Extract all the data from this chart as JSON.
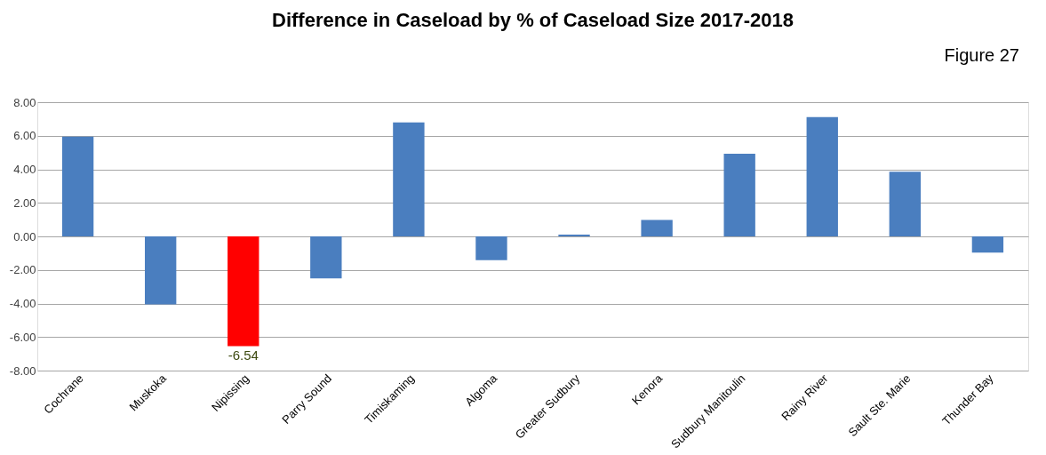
{
  "chart_data": {
    "type": "bar",
    "title": "Difference in Caseload by % of Caseload Size 2017-2018",
    "categories": [
      "Cochrane",
      "Muskoka",
      "Nipissing",
      "Parry Sound",
      "Timiskaming",
      "Algoma",
      "Greater Sudbury",
      "Kenora",
      "Sudbury Manitoulin",
      "Rainy River",
      "Sault Ste. Marie",
      "Thunder Bay"
    ],
    "values": [
      5.95,
      -4.05,
      -6.54,
      -2.5,
      6.8,
      -1.42,
      0.1,
      0.98,
      4.93,
      7.11,
      3.85,
      -0.97
    ],
    "colors": [
      "#4a7ebf",
      "#4a7ebf",
      "#ff0000",
      "#4a7ebf",
      "#4a7ebf",
      "#4a7ebf",
      "#4a7ebf",
      "#4a7ebf",
      "#4a7ebf",
      "#4a7ebf",
      "#4a7ebf",
      "#4a7ebf"
    ],
    "value_labels": [
      null,
      null,
      "-6.54",
      null,
      null,
      null,
      null,
      null,
      null,
      null,
      null,
      null
    ],
    "ylim": [
      -8,
      8
    ],
    "yticks": [
      {
        "value": -8,
        "label": "-8.00"
      },
      {
        "value": -6,
        "label": "-6.00"
      },
      {
        "value": -4,
        "label": "-4.00"
      },
      {
        "value": -2,
        "label": "-2.00"
      },
      {
        "value": 0,
        "label": "0.00"
      },
      {
        "value": 2,
        "label": "2.00"
      },
      {
        "value": 4,
        "label": "4.00"
      },
      {
        "value": 6,
        "label": "6.00"
      },
      {
        "value": 8,
        "label": "8.00"
      }
    ],
    "grid": "y",
    "annotations": [
      "Figure 27"
    ]
  }
}
